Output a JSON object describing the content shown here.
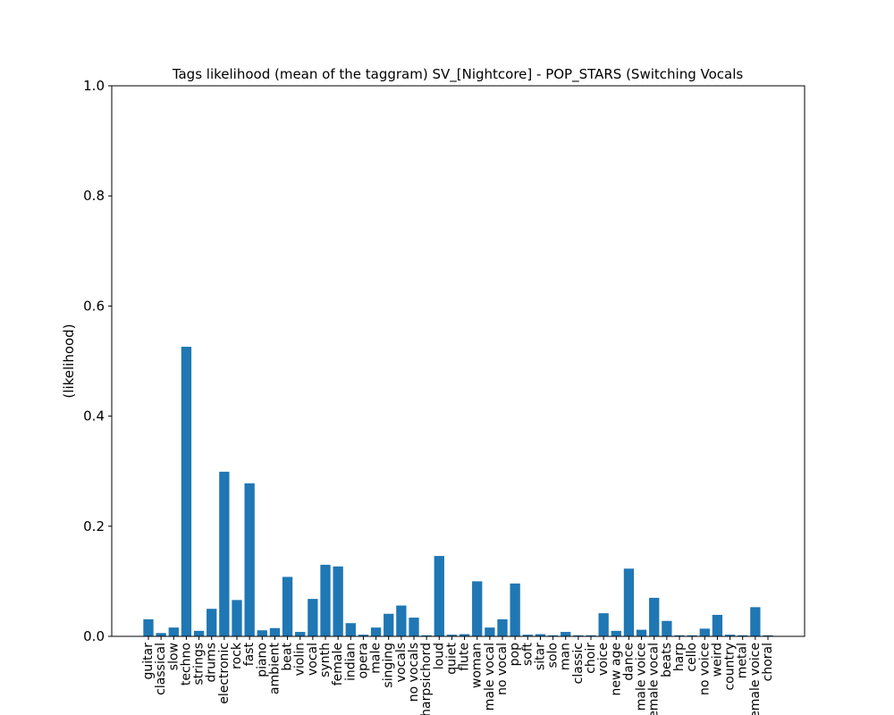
{
  "chart_data": {
    "type": "bar",
    "title": "Tags likelihood (mean of the taggram) SV_[Nightcore] - POP_STARS (Switching Vocals",
    "xlabel": "",
    "ylabel": "(likelihood)",
    "ylim": [
      0,
      1.0
    ],
    "yticks": [
      "0.0",
      "0.2",
      "0.4",
      "0.6",
      "0.8",
      "1.0"
    ],
    "grid": false,
    "legend": "none",
    "bar_color": "#1f77b4",
    "categories": [
      "guitar",
      "classical",
      "slow",
      "techno",
      "strings",
      "drums",
      "electronic",
      "rock",
      "fast",
      "piano",
      "ambient",
      "beat",
      "violin",
      "vocal",
      "synth",
      "female",
      "indian",
      "opera",
      "male",
      "singing",
      "vocals",
      "no vocals",
      "harpsichord",
      "loud",
      "quiet",
      "flute",
      "woman",
      "male vocal",
      "no vocal",
      "pop",
      "soft",
      "sitar",
      "solo",
      "man",
      "classic",
      "choir",
      "voice",
      "new age",
      "dance",
      "male voice",
      "female vocal",
      "beats",
      "harp",
      "cello",
      "no voice",
      "weird",
      "country",
      "metal",
      "female voice",
      "choral"
    ],
    "values": [
      0.031,
      0.006,
      0.016,
      0.526,
      0.01,
      0.05,
      0.299,
      0.066,
      0.278,
      0.011,
      0.015,
      0.108,
      0.008,
      0.068,
      0.13,
      0.127,
      0.024,
      0.003,
      0.016,
      0.041,
      0.056,
      0.034,
      0.002,
      0.146,
      0.003,
      0.004,
      0.1,
      0.016,
      0.031,
      0.096,
      0.003,
      0.004,
      0.002,
      0.008,
      0.002,
      0.002,
      0.042,
      0.01,
      0.123,
      0.012,
      0.07,
      0.028,
      0.002,
      0.002,
      0.014,
      0.039,
      0.003,
      0.002,
      0.053,
      0.002
    ]
  }
}
